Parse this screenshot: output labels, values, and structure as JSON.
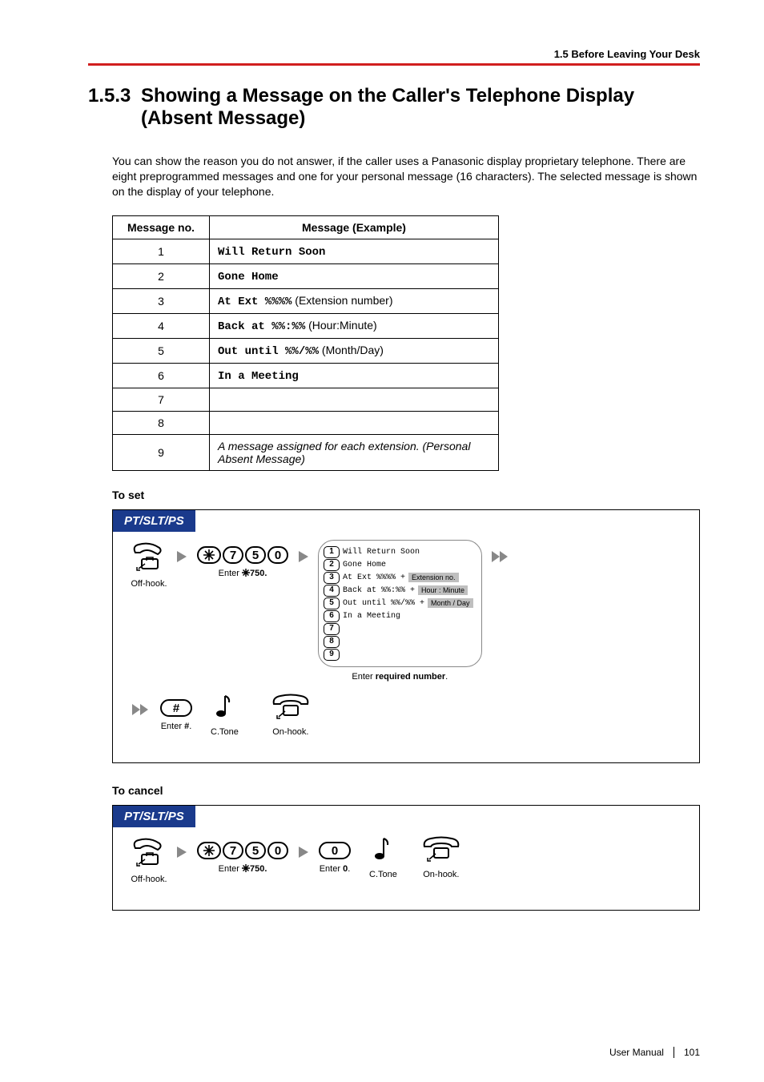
{
  "running_head": "1.5 Before Leaving Your Desk",
  "section_number": "1.5.3",
  "section_title": "Showing a Message on the Caller's Telephone Display (Absent Message)",
  "intro": "You can show the reason you do not answer, if the caller uses a Panasonic display proprietary telephone. There are eight preprogrammed messages and one for your personal message (16 characters). The selected message is shown on the display of your telephone.",
  "table": {
    "headers": [
      "Message no.",
      "Message (Example)"
    ],
    "rows": [
      {
        "no": "1",
        "mono": "Will Return Soon",
        "plain": ""
      },
      {
        "no": "2",
        "mono": "Gone Home",
        "plain": ""
      },
      {
        "no": "3",
        "mono": "At Ext %%%%",
        "plain": " (Extension number)"
      },
      {
        "no": "4",
        "mono": "Back at %%:%%",
        "plain": " (Hour:Minute)"
      },
      {
        "no": "5",
        "mono": "Out until %%/%%",
        "plain": " (Month/Day)"
      },
      {
        "no": "6",
        "mono": "In a Meeting",
        "plain": ""
      },
      {
        "no": "7",
        "mono": "",
        "plain": ""
      },
      {
        "no": "8",
        "mono": "",
        "plain": ""
      },
      {
        "no": "9",
        "mono": "",
        "plain": "",
        "italic": "A message assigned for each extension. (Personal Absent Message)"
      }
    ]
  },
  "to_set": {
    "heading": "To set",
    "box_label": "PT/SLT/PS",
    "steps": {
      "offhook": "Off-hook.",
      "enter750_pre": "Enter ",
      "enter750_key": "750.",
      "options_caption_pre": "Enter ",
      "options_caption_bold": "required number",
      "options_caption_post": ".",
      "enter_hash_pre": "Enter ",
      "enter_hash_bold": "#",
      "enter_hash_post": ".",
      "ctone": "C.Tone",
      "onhook": "On-hook."
    },
    "keys750": [
      "*",
      "7",
      "5",
      "0"
    ],
    "hash_key": "#",
    "options": [
      {
        "k": "1",
        "t": "Will Return Soon"
      },
      {
        "k": "2",
        "t": "Gone Home"
      },
      {
        "k": "3",
        "t": "At Ext %%%% +",
        "badge": "Extension no."
      },
      {
        "k": "4",
        "t": "Back at %%:%% +",
        "badge": "Hour : Minute"
      },
      {
        "k": "5",
        "t": "Out until %%/%% +",
        "badge": "Month / Day"
      },
      {
        "k": "6",
        "t": "In a Meeting"
      },
      {
        "k": "7",
        "t": ""
      },
      {
        "k": "8",
        "t": ""
      },
      {
        "k": "9",
        "t": ""
      }
    ]
  },
  "to_cancel": {
    "heading": "To cancel",
    "box_label": "PT/SLT/PS",
    "offhook": "Off-hook.",
    "enter750_pre": "Enter ",
    "enter750_key": "750.",
    "keys750": [
      "*",
      "7",
      "5",
      "0"
    ],
    "zero_key": "0",
    "enter0_pre": "Enter ",
    "enter0_bold": "0",
    "enter0_post": ".",
    "ctone": "C.Tone",
    "onhook": "On-hook."
  },
  "footer": {
    "label": "User Manual",
    "page": "101"
  },
  "colors": {
    "accent_red": "#d11e1e",
    "header_blue": "#1a3a8c"
  }
}
